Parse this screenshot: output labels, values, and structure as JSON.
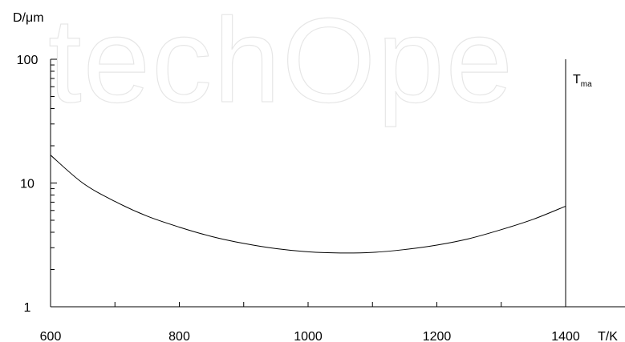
{
  "watermark": "techOpe",
  "chart_data": {
    "type": "line",
    "ylabel": "D/μm",
    "xlabel": "T/K",
    "xlim": [
      600,
      1400
    ],
    "ylim": [
      1,
      100
    ],
    "yscale": "log",
    "x_ticks": [
      "600",
      "800",
      "1000",
      "1200",
      "1400"
    ],
    "y_ticks": [
      "1",
      "10",
      "100"
    ],
    "series": [
      {
        "x": [
          600,
          650,
          700,
          750,
          800,
          850,
          900,
          950,
          1000,
          1050,
          1100,
          1150,
          1200,
          1250,
          1300,
          1350,
          1400
        ],
        "y": [
          16.8,
          10.0,
          7.1,
          5.4,
          4.4,
          3.7,
          3.25,
          2.95,
          2.78,
          2.72,
          2.75,
          2.9,
          3.15,
          3.55,
          4.2,
          5.1,
          6.5
        ]
      }
    ],
    "annotations": [
      {
        "text": "T",
        "subscript": "ma",
        "x": 1400
      }
    ]
  }
}
